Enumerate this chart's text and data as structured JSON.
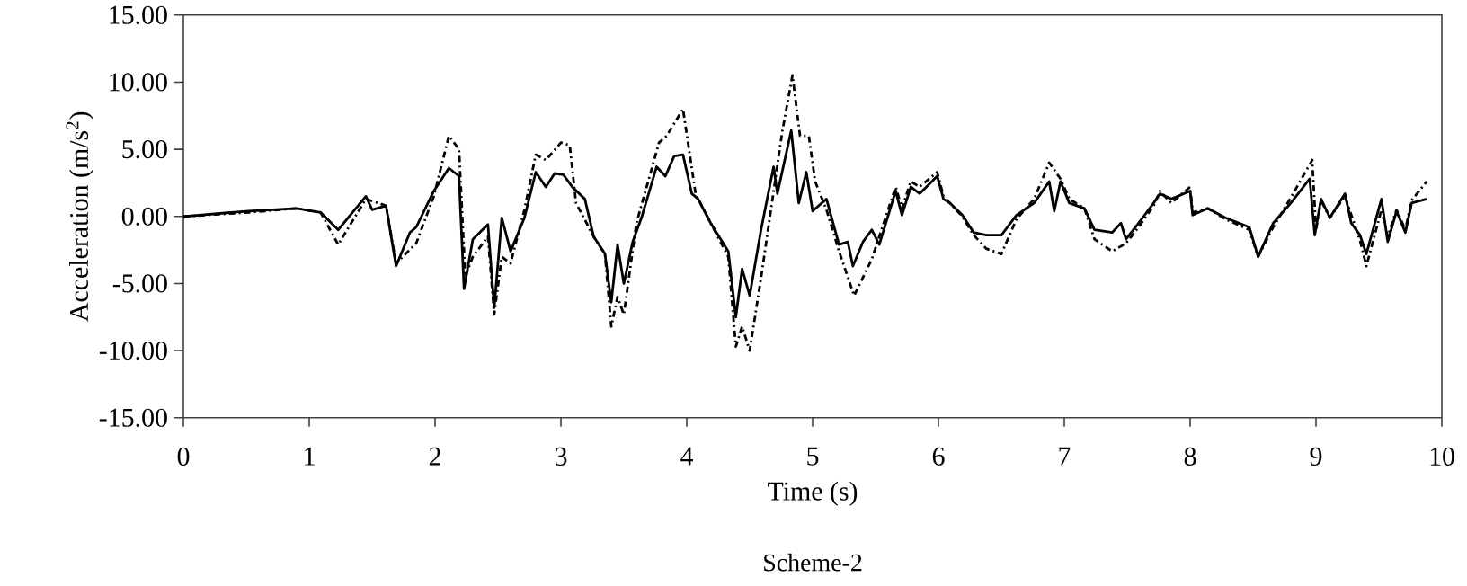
{
  "chart_data": {
    "type": "line",
    "xlabel": "Time (s)",
    "ylabel": "Acceleration (m/s$^{2}$)",
    "annotations": [
      "Scheme-2"
    ],
    "xlim": [
      0,
      10
    ],
    "xticks": [
      0,
      1,
      2,
      3,
      4,
      5,
      6,
      7,
      8,
      9,
      10
    ],
    "ylim": [
      -15,
      15
    ],
    "yticks": [
      {
        "value": -15,
        "label": "-15.00"
      },
      {
        "value": -10,
        "label": "-10.00"
      },
      {
        "value": -5,
        "label": "-5.00"
      },
      {
        "value": 0,
        "label": "0.00"
      },
      {
        "value": 5,
        "label": "5.00"
      },
      {
        "value": 10,
        "label": "10.00"
      },
      {
        "value": 15,
        "label": "15.00"
      }
    ],
    "grid": false,
    "marker": "none",
    "series": [
      {
        "color": "#000000",
        "line_style": "solid",
        "x": [
          0,
          0.52,
          0.9,
          1.09,
          1.23,
          1.45,
          1.5,
          1.61,
          1.69,
          1.8,
          1.85,
          1.99,
          2.11,
          2.19,
          2.23,
          2.3,
          2.42,
          2.47,
          2.53,
          2.6,
          2.71,
          2.8,
          2.88,
          2.95,
          3.02,
          3.09,
          3.19,
          3.26,
          3.35,
          3.4,
          3.45,
          3.5,
          3.57,
          3.64,
          3.76,
          3.83,
          3.9,
          3.97,
          4.04,
          4.09,
          4.19,
          4.33,
          4.39,
          4.44,
          4.5,
          4.59,
          4.69,
          4.72,
          4.83,
          4.89,
          4.95,
          5.0,
          5.11,
          5.21,
          5.28,
          5.32,
          5.4,
          5.47,
          5.53,
          5.66,
          5.71,
          5.78,
          5.85,
          5.99,
          6.04,
          6.09,
          6.19,
          6.28,
          6.38,
          6.5,
          6.62,
          6.76,
          6.88,
          6.92,
          6.97,
          7.04,
          7.16,
          7.24,
          7.38,
          7.45,
          7.49,
          7.59,
          7.71,
          7.76,
          7.85,
          8.0,
          8.02,
          8.14,
          8.28,
          8.47,
          8.54,
          8.66,
          8.8,
          8.95,
          8.99,
          9.04,
          9.11,
          9.23,
          9.28,
          9.35,
          9.4,
          9.52,
          9.57,
          9.64,
          9.71,
          9.76,
          9.88
        ],
        "values": [
          0,
          0.4,
          0.6,
          0.3,
          -1.0,
          1.5,
          0.5,
          0.8,
          -3.7,
          -1.2,
          -0.8,
          1.9,
          3.6,
          3.0,
          -5.4,
          -1.7,
          -0.6,
          -6.8,
          -0.1,
          -2.6,
          -0.1,
          3.3,
          2.2,
          3.2,
          3.1,
          2.2,
          1.3,
          -1.5,
          -2.8,
          -6.4,
          -2.1,
          -5.0,
          -1.9,
          -0.1,
          3.7,
          3.0,
          4.5,
          4.6,
          1.7,
          1.3,
          -0.5,
          -2.6,
          -7.5,
          -3.9,
          -5.9,
          -1.0,
          3.7,
          1.7,
          6.4,
          1.0,
          3.3,
          0.4,
          1.3,
          -2.1,
          -1.9,
          -3.7,
          -1.9,
          -1.0,
          -2.1,
          1.9,
          0.1,
          2.2,
          1.7,
          3.0,
          1.3,
          1.0,
          0.1,
          -1.2,
          -1.4,
          -1.4,
          0.1,
          1.0,
          2.6,
          0.4,
          2.6,
          1.0,
          0.6,
          -1.0,
          -1.2,
          -0.5,
          -1.7,
          -0.5,
          1.0,
          1.7,
          1.3,
          1.9,
          0.1,
          0.6,
          -0.1,
          -0.8,
          -3.0,
          -0.5,
          1.0,
          2.8,
          -1.4,
          1.3,
          -0.1,
          1.7,
          -0.5,
          -1.4,
          -2.8,
          1.3,
          -1.9,
          0.4,
          -1.2,
          1.0,
          1.3
        ]
      },
      {
        "color": "#000000",
        "line_style": "dashed",
        "x": [
          0,
          0.52,
          0.9,
          1.09,
          1.23,
          1.45,
          1.61,
          1.69,
          1.85,
          1.99,
          2.11,
          2.19,
          2.24,
          2.3,
          2.42,
          2.47,
          2.53,
          2.6,
          2.71,
          2.8,
          2.88,
          3.0,
          3.07,
          3.12,
          3.26,
          3.35,
          3.4,
          3.45,
          3.5,
          3.6,
          3.78,
          3.84,
          3.97,
          4.07,
          4.19,
          4.33,
          4.39,
          4.44,
          4.5,
          4.59,
          4.76,
          4.84,
          4.9,
          4.97,
          5.02,
          5.11,
          5.21,
          5.33,
          5.47,
          5.66,
          5.71,
          5.78,
          5.85,
          5.99,
          6.04,
          6.19,
          6.28,
          6.38,
          6.5,
          6.62,
          6.76,
          6.88,
          6.97,
          7.04,
          7.16,
          7.24,
          7.38,
          7.49,
          7.59,
          7.71,
          7.76,
          7.85,
          8.0,
          8.02,
          8.14,
          8.28,
          8.47,
          8.54,
          8.66,
          8.8,
          8.97,
          9.0,
          9.04,
          9.11,
          9.23,
          9.35,
          9.4,
          9.52,
          9.57,
          9.64,
          9.71,
          9.76,
          9.88
        ],
        "values": [
          0,
          0.3,
          0.6,
          0.3,
          -2.1,
          1.3,
          0.8,
          -3.5,
          -2.0,
          1.5,
          6.0,
          5.0,
          -4.5,
          -3.0,
          -1.5,
          -7.3,
          -3.0,
          -3.5,
          0.5,
          4.6,
          4.2,
          5.5,
          5.3,
          1.0,
          -1.5,
          -2.8,
          -8.2,
          -6.0,
          -7.3,
          -0.5,
          5.5,
          6.0,
          8.0,
          1.7,
          -0.5,
          -3.0,
          -9.7,
          -8.2,
          -10.0,
          -4.6,
          6.4,
          10.5,
          6.0,
          6.0,
          2.6,
          0.5,
          -2.6,
          -5.9,
          -3.2,
          2.2,
          0.6,
          2.6,
          2.2,
          3.3,
          1.5,
          0.0,
          -1.4,
          -2.4,
          -2.8,
          -0.2,
          1.3,
          4.0,
          2.8,
          1.3,
          0.6,
          -1.7,
          -2.6,
          -2.0,
          -0.8,
          0.8,
          1.9,
          1.0,
          2.2,
          0.3,
          0.6,
          -0.2,
          -1.0,
          -3.0,
          -0.8,
          1.4,
          4.2,
          -1.0,
          1.2,
          -0.1,
          1.5,
          -1.8,
          -3.7,
          0.5,
          -1.5,
          0.5,
          -1.0,
          1.2,
          2.6
        ]
      }
    ]
  }
}
